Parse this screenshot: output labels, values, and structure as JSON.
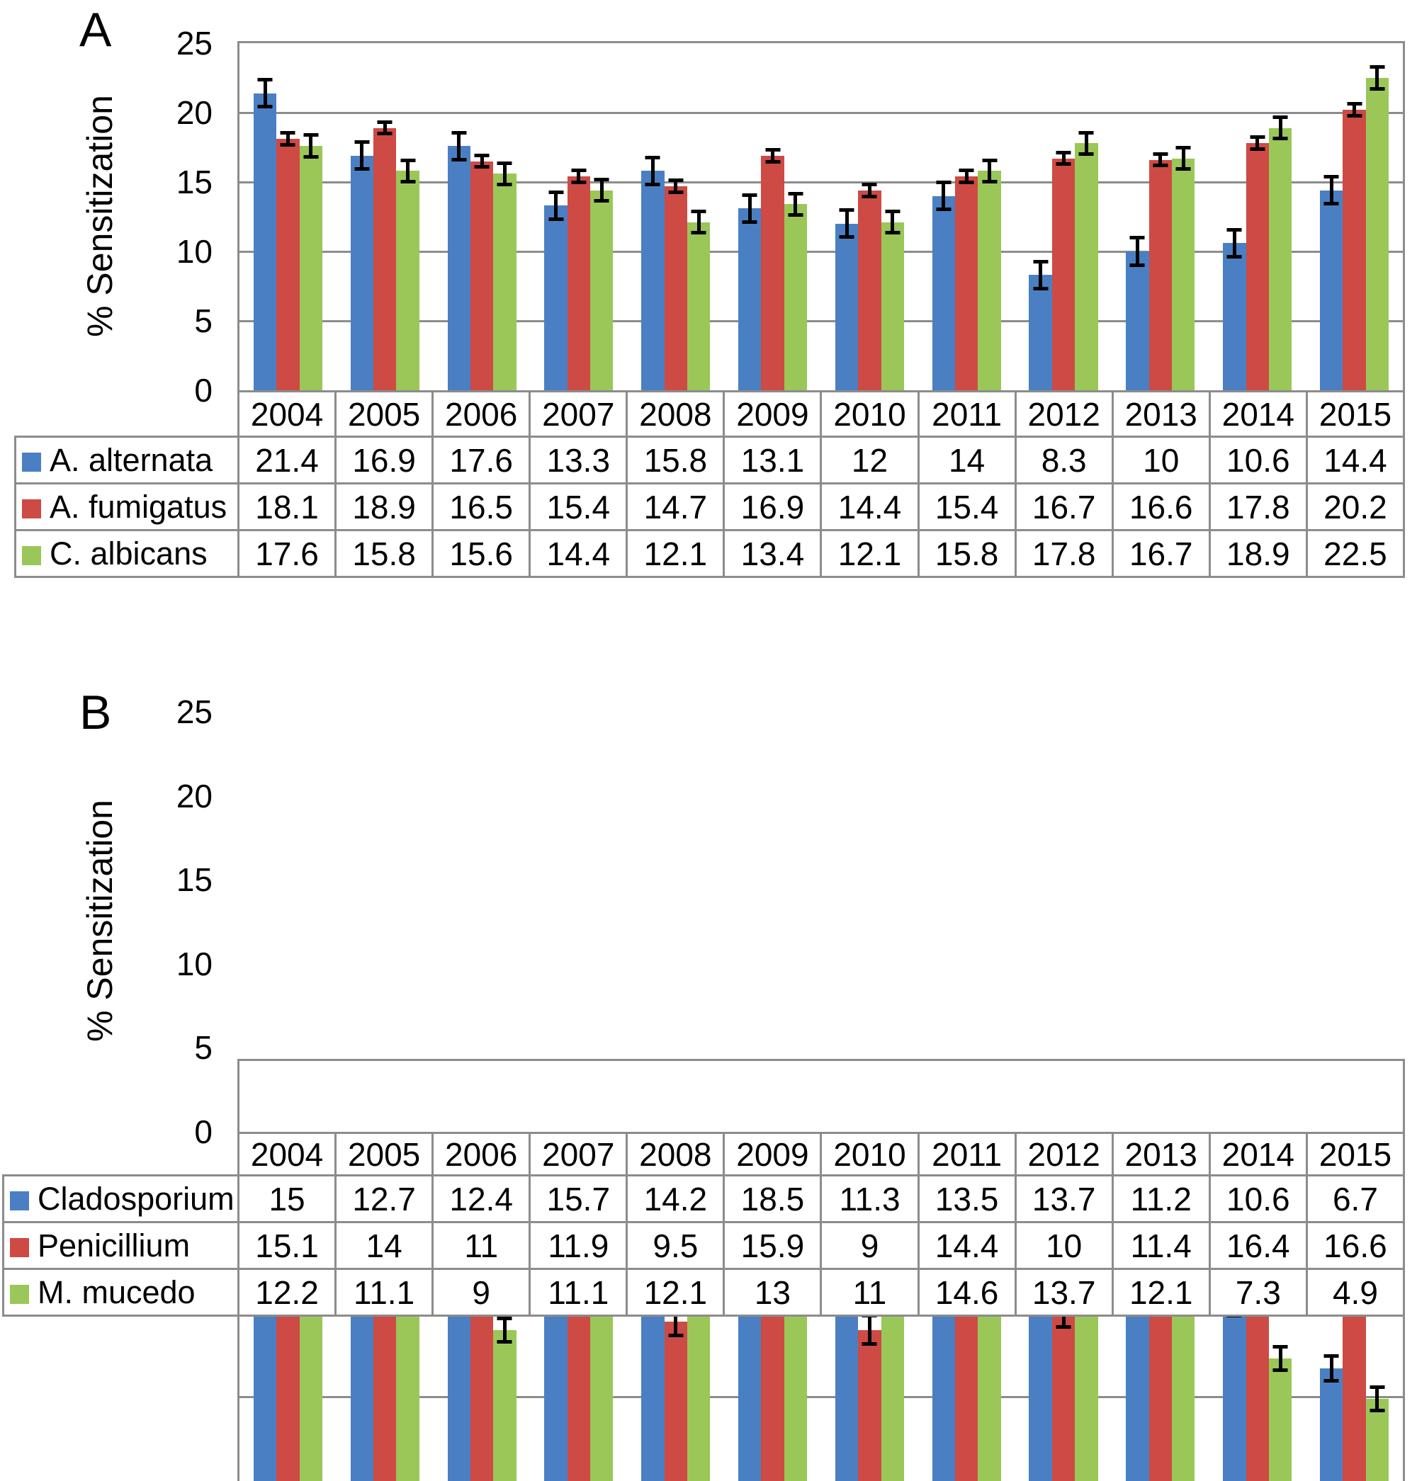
{
  "chart_data": [
    {
      "type": "bar",
      "panel_label": "A",
      "title": "",
      "ylabel": "% Sensitization",
      "xlabel": "",
      "ylim": [
        0,
        25
      ],
      "yticks": [
        0,
        5,
        10,
        15,
        20,
        25
      ],
      "grid": true,
      "legend_position": "table-left",
      "categories": [
        "2004",
        "2005",
        "2006",
        "2007",
        "2008",
        "2009",
        "2010",
        "2011",
        "2012",
        "2013",
        "2014",
        "2015"
      ],
      "series": [
        {
          "name": "A. alternata",
          "color": "#4A80C3",
          "values": [
            21.4,
            16.9,
            17.6,
            13.3,
            15.8,
            13.1,
            12,
            14,
            8.3,
            10,
            10.6,
            14.4
          ],
          "error_bar_approx": 1.1
        },
        {
          "name": "A. fumigatus",
          "color": "#CE4A44",
          "values": [
            18.1,
            18.9,
            16.5,
            15.4,
            14.7,
            16.9,
            14.4,
            15.4,
            16.7,
            16.6,
            17.8,
            20.2
          ],
          "error_bar_approx": 0.55
        },
        {
          "name": "C. albicans",
          "color": "#9AC758",
          "values": [
            17.6,
            15.8,
            15.6,
            14.4,
            12.1,
            13.4,
            12.1,
            15.8,
            17.8,
            16.7,
            18.9,
            22.5
          ],
          "error_bar_approx": 0.9
        }
      ]
    },
    {
      "type": "bar",
      "panel_label": "B",
      "title": "",
      "ylabel": "% Sensitization",
      "xlabel": "",
      "ylim": [
        0,
        25
      ],
      "yticks": [
        0,
        5,
        10,
        15,
        20,
        25
      ],
      "grid": true,
      "legend_position": "table-left",
      "categories": [
        "2004",
        "2005",
        "2006",
        "2007",
        "2008",
        "2009",
        "2010",
        "2011",
        "2012",
        "2013",
        "2014",
        "2015"
      ],
      "series": [
        {
          "name": "Cladosporium",
          "color": "#4A80C3",
          "values": [
            15,
            12.7,
            12.4,
            15.7,
            14.2,
            18.5,
            11.3,
            13.5,
            13.7,
            11.2,
            10.6,
            6.7
          ],
          "error_bar_approx": 0.85
        },
        {
          "name": "Penicillium",
          "color": "#CE4A44",
          "values": [
            15.1,
            14,
            11,
            11.9,
            9.5,
            15.9,
            9,
            14.4,
            10,
            11.4,
            16.4,
            16.6
          ],
          "error_bar_approx": 0.95
        },
        {
          "name": "M. mucedo",
          "color": "#9AC758",
          "values": [
            12.2,
            11.1,
            9,
            11.1,
            12.1,
            13,
            11,
            14.6,
            13.7,
            12.1,
            7.3,
            4.9
          ],
          "error_bar_approx": 0.8
        }
      ]
    }
  ],
  "styles": {
    "grid_color": "#8C8C8C",
    "error_bar_color": "#000000",
    "text_color": "#000000",
    "background": "#FFFFFF"
  }
}
